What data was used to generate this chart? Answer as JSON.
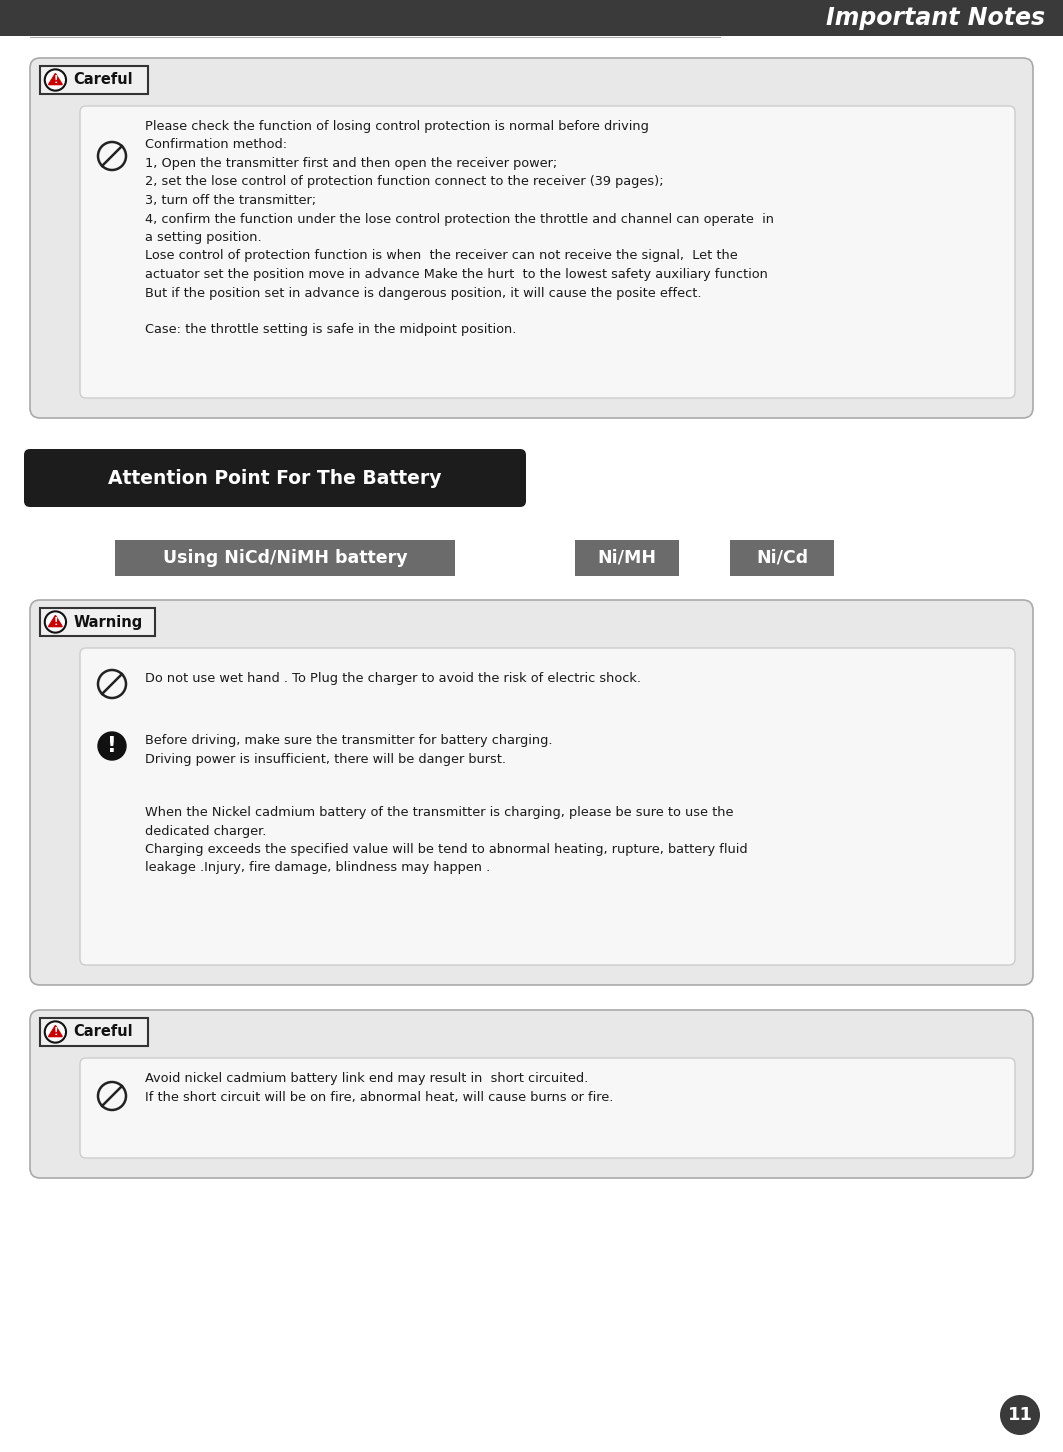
{
  "title": "Important Notes",
  "title_bg": "#3a3a3a",
  "title_color": "#ffffff",
  "page_bg": "#ffffff",
  "page_number": "11",
  "careful1_label": "Careful",
  "outer_box_bg": "#e8e8e8",
  "inner_box_bg": "#f5f5f5",
  "careful1_text": "Please check the function of losing control protection is normal before driving\nConfirmation method:\n1, Open the transmitter first and then open the receiver power;\n2, set the lose control of protection function connect to the receiver (39 pages);\n3, turn off the transmitter;\n4, confirm the function under the lose control protection the throttle and channel can operate  in\na setting position.\nLose control of protection function is when  the receiver can not receive the signal,  Let the\nactuator set the position move in advance Make the hurt  to the lowest safety auxiliary function\nBut if the position set in advance is dangerous position, it will cause the posite effect.\n\nCase: the throttle setting is safe in the midpoint position.",
  "battery_banner_text": "Attention Point For The Battery",
  "battery_banner_bg": "#1c1c1c",
  "battery_banner_color": "#ffffff",
  "nicd_label1": "Using NiCd/NiMH battery",
  "nicd_label2": "Ni/MH",
  "nicd_label3": "Ni/Cd",
  "nicd_bg": "#6b6b6b",
  "nicd_color": "#ffffff",
  "warning_label": "Warning",
  "warning_text1": "Do not use wet hand . To Plug the charger to avoid the risk of electric shock.",
  "warning_text2": "Before driving, make sure the transmitter for battery charging.\nDriving power is insufficient, there will be danger burst.",
  "warning_text3": "When the Nickel cadmium battery of the transmitter is charging, please be sure to use the\ndedicated charger.\nCharging exceeds the specified value will be tend to abnormal heating, rupture, battery fluid\nleakage .Injury, fire damage, blindness may happen .",
  "careful2_label": "Careful",
  "careful2_text": "Avoid nickel cadmium battery link end may result in  short circuited.\nIf the short circuit will be on fire, abnormal heat, will cause burns or fire."
}
